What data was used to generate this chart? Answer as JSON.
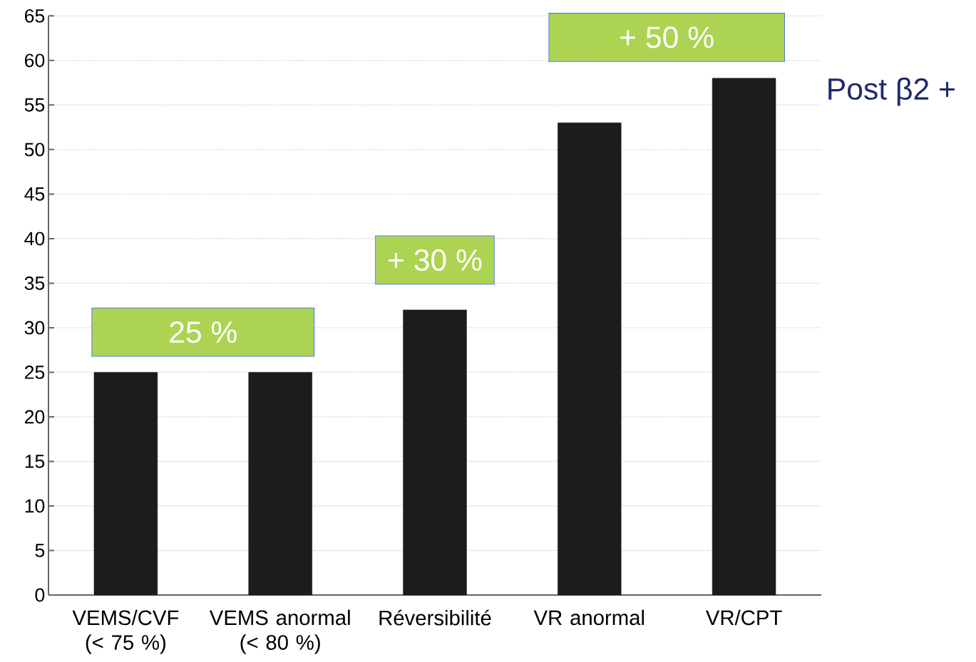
{
  "chart_data": {
    "type": "bar",
    "categories": [
      "VEMS/CVF (< 75 %)",
      "VEMS anormal (< 80 %)",
      "Réversibilité",
      "VR anormal",
      "VR/CPT"
    ],
    "values": [
      25,
      25,
      32,
      53,
      58
    ],
    "color": "#1e1b1b",
    "ylim": [
      0,
      65
    ],
    "yticks": [
      0,
      5,
      10,
      15,
      20,
      25,
      30,
      35,
      40,
      45,
      50,
      55,
      60,
      65
    ],
    "grid": "y",
    "annotations": [
      "25 %",
      "+ 30 %",
      "+ 50 %",
      "Post β2 +"
    ]
  }
}
